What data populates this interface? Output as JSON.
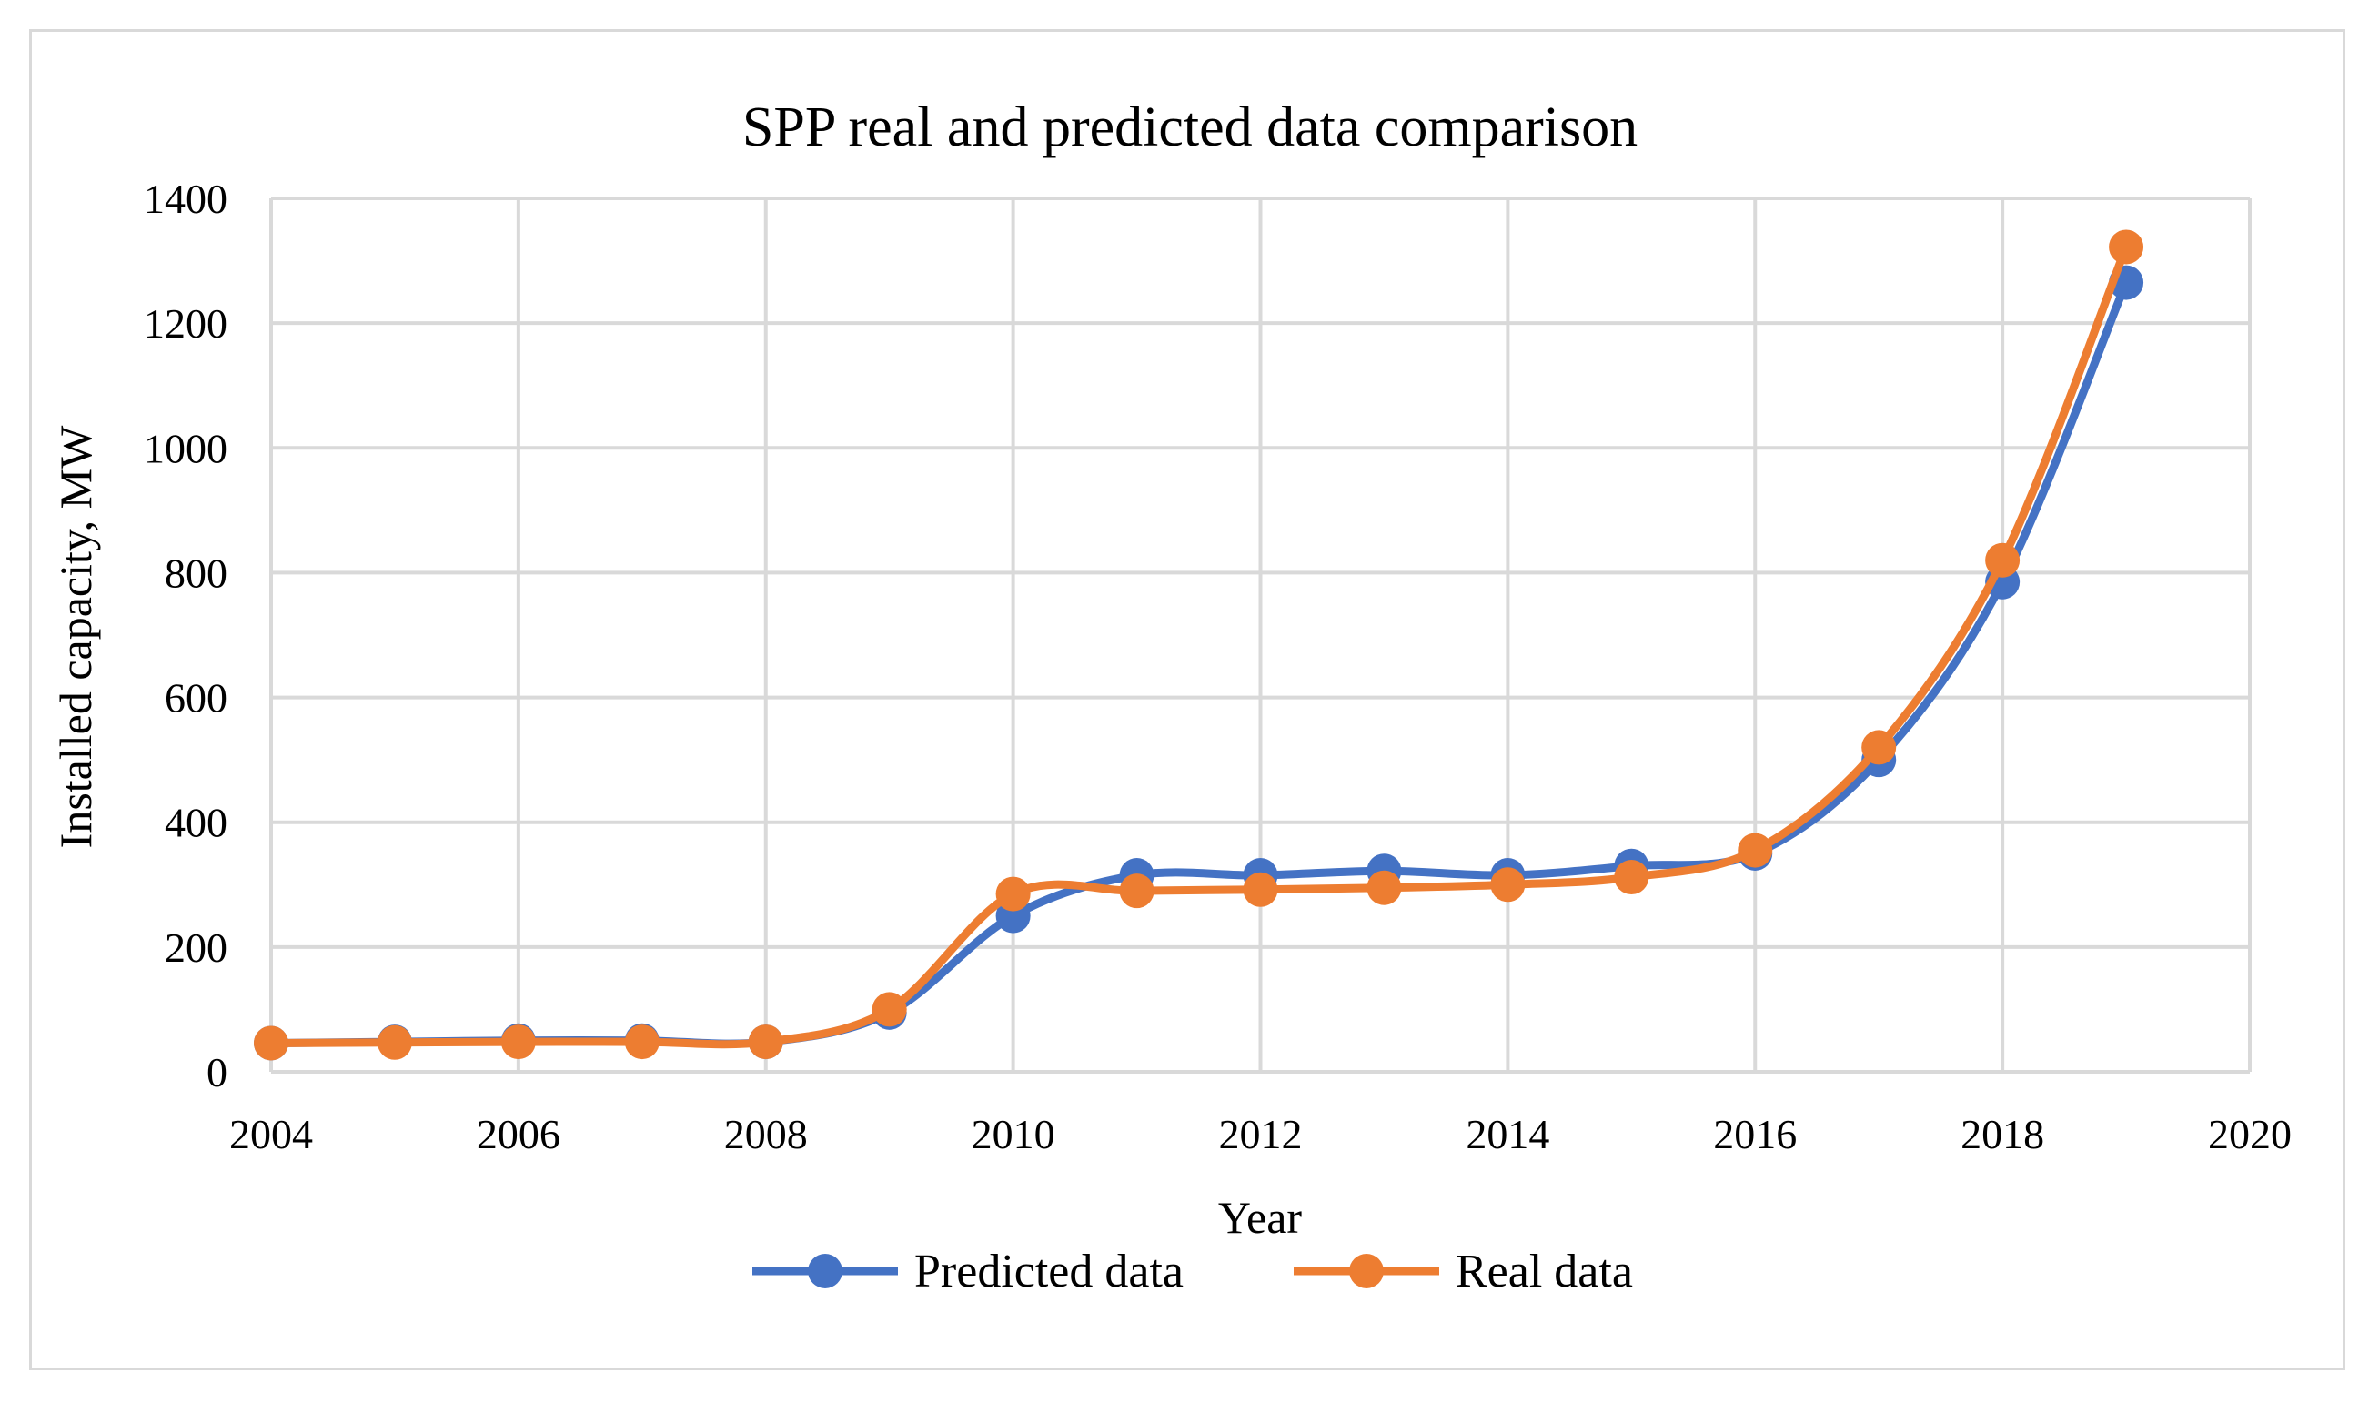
{
  "chart_data": {
    "type": "scatter",
    "title": "SPP real and predicted data comparison",
    "xlabel": "Year",
    "ylabel": "Installed capacity, MW",
    "xlim": [
      2004,
      2020
    ],
    "ylim": [
      0,
      1400
    ],
    "x_ticks": [
      2004,
      2006,
      2008,
      2010,
      2012,
      2014,
      2016,
      2018,
      2020
    ],
    "y_ticks": [
      0,
      200,
      400,
      600,
      800,
      1000,
      1200,
      1400
    ],
    "grid": true,
    "smooth_lines": true,
    "legend_position": "bottom",
    "series": [
      {
        "name": "Predicted data",
        "color": "#4472C4",
        "x": [
          2004,
          2005,
          2006,
          2007,
          2008,
          2009,
          2010,
          2011,
          2012,
          2013,
          2014,
          2015,
          2016,
          2017,
          2018,
          2019
        ],
        "y": [
          46,
          48,
          50,
          50,
          48,
          95,
          250,
          315,
          315,
          322,
          315,
          330,
          350,
          500,
          785,
          1265
        ]
      },
      {
        "name": "Real data",
        "color": "#ED7D31",
        "x": [
          2004,
          2005,
          2006,
          2007,
          2008,
          2009,
          2010,
          2011,
          2012,
          2013,
          2014,
          2015,
          2016,
          2017,
          2018,
          2019
        ],
        "y": [
          46,
          47,
          48,
          48,
          48,
          100,
          285,
          290,
          292,
          295,
          300,
          312,
          355,
          520,
          820,
          1322
        ]
      }
    ]
  }
}
